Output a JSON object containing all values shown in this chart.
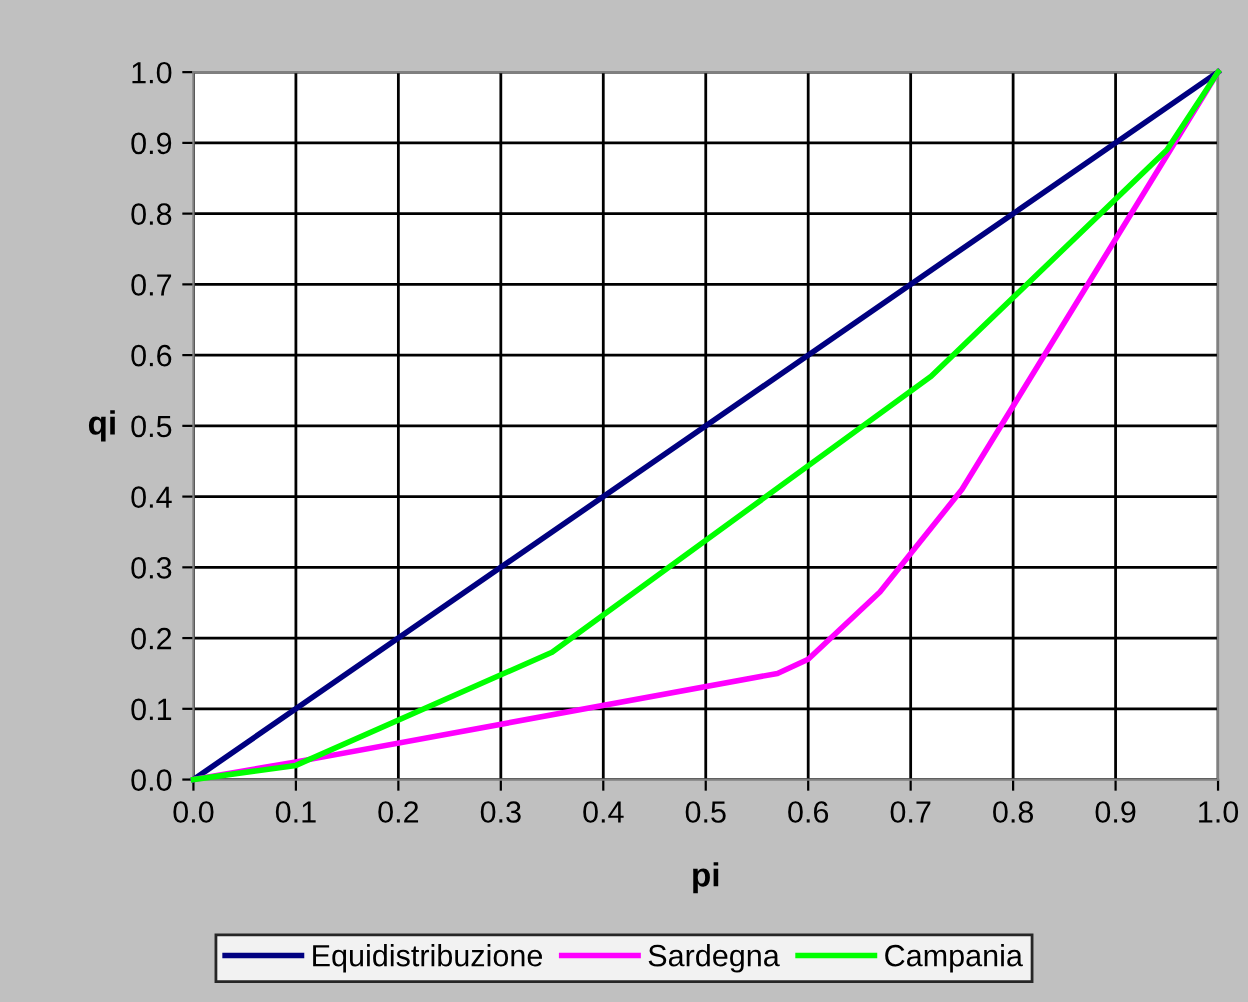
{
  "chart_data": {
    "type": "line",
    "xlabel": "pi",
    "ylabel": "qi",
    "xlim": [
      0.0,
      1.0
    ],
    "ylim": [
      0.0,
      1.0
    ],
    "xticks": [
      {
        "value": 0.0,
        "label": "0.0"
      },
      {
        "value": 0.1,
        "label": "0.1"
      },
      {
        "value": 0.2,
        "label": "0.2"
      },
      {
        "value": 0.3,
        "label": "0.3"
      },
      {
        "value": 0.4,
        "label": "0.4"
      },
      {
        "value": 0.5,
        "label": "0.5"
      },
      {
        "value": 0.6,
        "label": "0.6"
      },
      {
        "value": 0.7,
        "label": "0.7"
      },
      {
        "value": 0.8,
        "label": "0.8"
      },
      {
        "value": 0.9,
        "label": "0.9"
      },
      {
        "value": 1.0,
        "label": "1.0"
      }
    ],
    "yticks": [
      {
        "value": 0.0,
        "label": "0.0"
      },
      {
        "value": 0.1,
        "label": "0.1"
      },
      {
        "value": 0.2,
        "label": "0.2"
      },
      {
        "value": 0.3,
        "label": "0.3"
      },
      {
        "value": 0.4,
        "label": "0.4"
      },
      {
        "value": 0.5,
        "label": "0.5"
      },
      {
        "value": 0.6,
        "label": "0.6"
      },
      {
        "value": 0.7,
        "label": "0.7"
      },
      {
        "value": 0.8,
        "label": "0.8"
      },
      {
        "value": 0.9,
        "label": "0.9"
      },
      {
        "value": 1.0,
        "label": "1.0"
      }
    ],
    "grid": true,
    "legend": "bottom",
    "marker": "none",
    "line_style": "solid",
    "series": [
      {
        "name": "Equidistribuzione",
        "color": "#000080",
        "x": [
          0,
          1
        ],
        "values": [
          0,
          1
        ]
      },
      {
        "name": "Sardegna",
        "color": "#ff00ff",
        "x": [
          0,
          0.1,
          0.57,
          0.6,
          0.67,
          0.75,
          1
        ],
        "values": [
          0,
          0.025,
          0.15,
          0.17,
          0.265,
          0.41,
          1
        ]
      },
      {
        "name": "Campania",
        "color": "#00ff00",
        "x": [
          0,
          0.1,
          0.35,
          0.72,
          0.95,
          1
        ],
        "values": [
          0,
          0.02,
          0.18,
          0.57,
          0.89,
          1
        ]
      }
    ]
  }
}
